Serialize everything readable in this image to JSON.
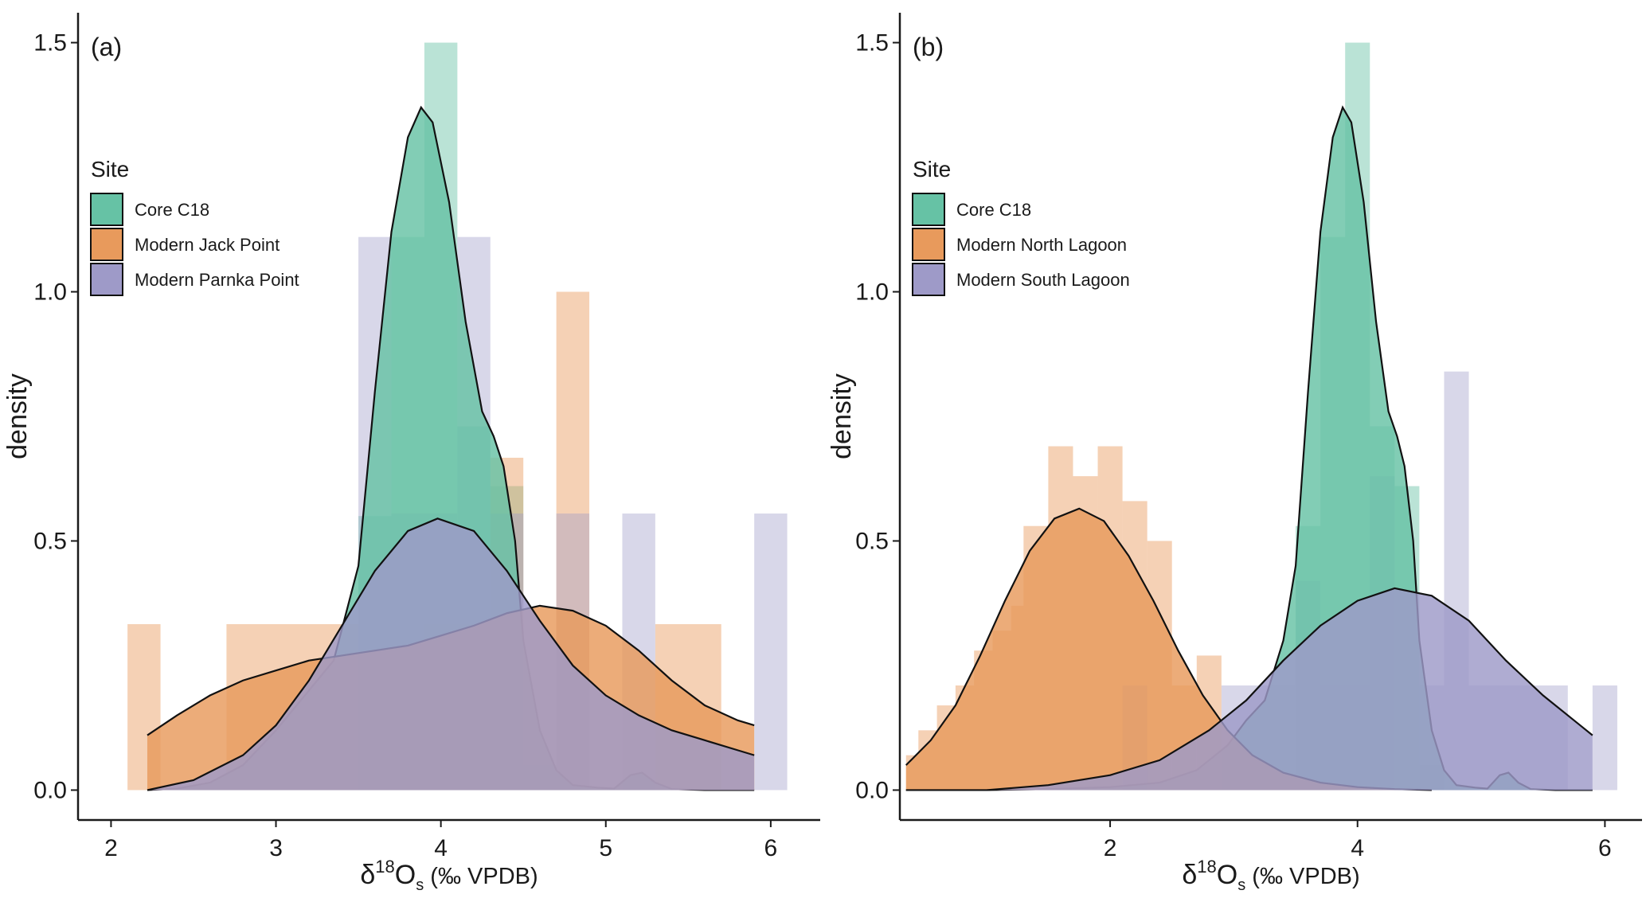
{
  "chart_data": [
    {
      "type": "histogram-density",
      "panel_label": "(a)",
      "xlabel": {
        "prefix": "δ",
        "sup": "18",
        "mid": "O",
        "sub": "s",
        "suffix": " (‰ VPDB)"
      },
      "ylabel": "density",
      "xlim": [
        1.8,
        6.3
      ],
      "ylim": [
        -0.06,
        1.56
      ],
      "xticks": [
        2,
        3,
        4,
        5,
        6
      ],
      "yticks": [
        0.0,
        0.5,
        1.0,
        1.5
      ],
      "ytick_labels": [
        "0.0",
        "0.5",
        "1.0",
        "1.5"
      ],
      "legend": {
        "title": "Site",
        "position": "top-left"
      },
      "series": [
        {
          "name": "Core C18",
          "color": "#66c2a5",
          "hist_alpha": 0.45,
          "hist_bins": [
            [
              3.5,
              3.7,
              0.55
            ],
            [
              3.7,
              3.9,
              1.11
            ],
            [
              3.9,
              4.1,
              1.5
            ],
            [
              4.1,
              4.3,
              0.73
            ],
            [
              4.3,
              4.5,
              0.61
            ],
            [
              4.5,
              4.7,
              0.05
            ]
          ],
          "density": [
            [
              2.22,
              0.0
            ],
            [
              2.4,
              0.003
            ],
            [
              2.6,
              0.015
            ],
            [
              2.8,
              0.05
            ],
            [
              3.0,
              0.12
            ],
            [
              3.2,
              0.2
            ],
            [
              3.35,
              0.26
            ],
            [
              3.5,
              0.45
            ],
            [
              3.6,
              0.8
            ],
            [
              3.7,
              1.12
            ],
            [
              3.8,
              1.31
            ],
            [
              3.88,
              1.37
            ],
            [
              3.95,
              1.34
            ],
            [
              4.05,
              1.18
            ],
            [
              4.15,
              0.94
            ],
            [
              4.25,
              0.76
            ],
            [
              4.32,
              0.71
            ],
            [
              4.38,
              0.65
            ],
            [
              4.45,
              0.5
            ],
            [
              4.5,
              0.3
            ],
            [
              4.6,
              0.12
            ],
            [
              4.7,
              0.04
            ],
            [
              4.8,
              0.01
            ],
            [
              4.95,
              0.005
            ],
            [
              5.05,
              0.003
            ],
            [
              5.15,
              0.03
            ],
            [
              5.22,
              0.035
            ],
            [
              5.3,
              0.015
            ],
            [
              5.4,
              0.002
            ],
            [
              5.6,
              0.0
            ],
            [
              5.9,
              0.0
            ]
          ]
        },
        {
          "name": "Modern Jack Point",
          "color": "#e89a5c",
          "hist_alpha": 0.45,
          "hist_bins": [
            [
              2.1,
              2.3,
              0.333
            ],
            [
              2.7,
              3.5,
              0.333
            ],
            [
              3.9,
              4.5,
              0.333
            ],
            [
              4.3,
              4.5,
              0.667
            ],
            [
              4.7,
              4.9,
              1.0
            ],
            [
              5.3,
              5.7,
              0.333
            ]
          ],
          "density": [
            [
              2.22,
              0.11
            ],
            [
              2.4,
              0.15
            ],
            [
              2.6,
              0.19
            ],
            [
              2.8,
              0.22
            ],
            [
              3.0,
              0.24
            ],
            [
              3.2,
              0.26
            ],
            [
              3.4,
              0.27
            ],
            [
              3.6,
              0.28
            ],
            [
              3.8,
              0.29
            ],
            [
              4.0,
              0.31
            ],
            [
              4.2,
              0.33
            ],
            [
              4.4,
              0.355
            ],
            [
              4.6,
              0.37
            ],
            [
              4.8,
              0.36
            ],
            [
              5.0,
              0.33
            ],
            [
              5.2,
              0.28
            ],
            [
              5.4,
              0.22
            ],
            [
              5.6,
              0.17
            ],
            [
              5.8,
              0.14
            ],
            [
              5.9,
              0.13
            ]
          ]
        },
        {
          "name": "Modern Parnka Point",
          "color": "#9e9ac8",
          "hist_alpha": 0.4,
          "hist_bins": [
            [
              3.5,
              3.7,
              1.11
            ],
            [
              3.7,
              4.1,
              0.555
            ],
            [
              4.1,
              4.3,
              1.11
            ],
            [
              4.3,
              4.5,
              0.555
            ],
            [
              4.7,
              4.9,
              0.555
            ],
            [
              5.1,
              5.3,
              0.555
            ],
            [
              5.9,
              6.1,
              0.555
            ]
          ],
          "density": [
            [
              2.22,
              0.0
            ],
            [
              2.5,
              0.02
            ],
            [
              2.8,
              0.07
            ],
            [
              3.0,
              0.13
            ],
            [
              3.2,
              0.22
            ],
            [
              3.4,
              0.33
            ],
            [
              3.6,
              0.44
            ],
            [
              3.8,
              0.52
            ],
            [
              3.98,
              0.545
            ],
            [
              4.2,
              0.52
            ],
            [
              4.4,
              0.44
            ],
            [
              4.6,
              0.34
            ],
            [
              4.8,
              0.25
            ],
            [
              5.0,
              0.19
            ],
            [
              5.2,
              0.15
            ],
            [
              5.4,
              0.12
            ],
            [
              5.6,
              0.1
            ],
            [
              5.8,
              0.08
            ],
            [
              5.9,
              0.07
            ]
          ]
        }
      ]
    },
    {
      "type": "histogram-density",
      "panel_label": "(b)",
      "xlabel": {
        "prefix": "δ",
        "sup": "18",
        "mid": "O",
        "sub": "s",
        "suffix": " (‰ VPDB)"
      },
      "ylabel": "density",
      "xlim": [
        0.3,
        6.3
      ],
      "ylim": [
        -0.06,
        1.56
      ],
      "xticks": [
        2,
        4,
        6
      ],
      "yticks": [
        0.0,
        0.5,
        1.0,
        1.5
      ],
      "ytick_labels": [
        "0.0",
        "0.5",
        "1.0",
        "1.5"
      ],
      "legend": {
        "title": "Site",
        "position": "top-left"
      },
      "series": [
        {
          "name": "Core C18",
          "color": "#66c2a5",
          "hist_alpha": 0.45,
          "hist_bins": [
            [
              3.5,
              3.7,
              0.53
            ],
            [
              3.7,
              3.9,
              1.11
            ],
            [
              3.9,
              4.1,
              1.5
            ],
            [
              4.1,
              4.3,
              0.73
            ],
            [
              4.3,
              4.5,
              0.61
            ],
            [
              4.5,
              4.7,
              0.05
            ]
          ],
          "density": [
            [
              0.35,
              0.0
            ],
            [
              1.0,
              0.0
            ],
            [
              1.5,
              0.002
            ],
            [
              2.0,
              0.006
            ],
            [
              2.4,
              0.015
            ],
            [
              2.7,
              0.04
            ],
            [
              2.95,
              0.09
            ],
            [
              3.1,
              0.14
            ],
            [
              3.25,
              0.18
            ],
            [
              3.4,
              0.3
            ],
            [
              3.5,
              0.45
            ],
            [
              3.6,
              0.8
            ],
            [
              3.7,
              1.12
            ],
            [
              3.8,
              1.31
            ],
            [
              3.88,
              1.37
            ],
            [
              3.95,
              1.34
            ],
            [
              4.05,
              1.18
            ],
            [
              4.15,
              0.94
            ],
            [
              4.25,
              0.76
            ],
            [
              4.32,
              0.71
            ],
            [
              4.38,
              0.65
            ],
            [
              4.45,
              0.5
            ],
            [
              4.5,
              0.3
            ],
            [
              4.6,
              0.12
            ],
            [
              4.7,
              0.04
            ],
            [
              4.8,
              0.01
            ],
            [
              4.95,
              0.005
            ],
            [
              5.05,
              0.003
            ],
            [
              5.15,
              0.03
            ],
            [
              5.22,
              0.035
            ],
            [
              5.3,
              0.015
            ],
            [
              5.4,
              0.002
            ],
            [
              5.6,
              0.0
            ],
            [
              5.9,
              0.0
            ]
          ]
        },
        {
          "name": "Modern North Lagoon",
          "color": "#e89a5c",
          "hist_alpha": 0.45,
          "hist_bins": [
            [
              0.35,
              0.45,
              0.07
            ],
            [
              0.45,
              0.6,
              0.12
            ],
            [
              0.6,
              0.75,
              0.17
            ],
            [
              0.75,
              0.9,
              0.21
            ],
            [
              0.9,
              1.05,
              0.28
            ],
            [
              1.05,
              1.2,
              0.32
            ],
            [
              1.2,
              1.3,
              0.37
            ],
            [
              1.3,
              1.5,
              0.53
            ],
            [
              1.5,
              1.7,
              0.69
            ],
            [
              1.7,
              1.9,
              0.63
            ],
            [
              1.9,
              2.1,
              0.69
            ],
            [
              2.1,
              2.3,
              0.58
            ],
            [
              2.3,
              2.5,
              0.5
            ],
            [
              2.5,
              2.7,
              0.21
            ],
            [
              2.7,
              2.9,
              0.27
            ]
          ],
          "density": [
            [
              0.35,
              0.05
            ],
            [
              0.55,
              0.1
            ],
            [
              0.75,
              0.17
            ],
            [
              0.95,
              0.27
            ],
            [
              1.15,
              0.38
            ],
            [
              1.35,
              0.48
            ],
            [
              1.55,
              0.545
            ],
            [
              1.75,
              0.565
            ],
            [
              1.95,
              0.54
            ],
            [
              2.15,
              0.47
            ],
            [
              2.35,
              0.38
            ],
            [
              2.55,
              0.28
            ],
            [
              2.75,
              0.19
            ],
            [
              2.95,
              0.12
            ],
            [
              3.15,
              0.07
            ],
            [
              3.4,
              0.035
            ],
            [
              3.7,
              0.015
            ],
            [
              4.0,
              0.006
            ],
            [
              4.3,
              0.002
            ],
            [
              4.6,
              0.0
            ]
          ]
        },
        {
          "name": "Modern South Lagoon",
          "color": "#9e9ac8",
          "hist_alpha": 0.4,
          "hist_bins": [
            [
              2.1,
              2.3,
              0.21
            ],
            [
              2.9,
              3.5,
              0.21
            ],
            [
              3.5,
              3.7,
              0.42
            ],
            [
              3.7,
              4.1,
              0.21
            ],
            [
              4.1,
              4.3,
              0.63
            ],
            [
              4.5,
              4.7,
              0.21
            ],
            [
              4.7,
              4.9,
              0.84
            ],
            [
              4.9,
              5.7,
              0.21
            ],
            [
              5.9,
              6.1,
              0.21
            ]
          ],
          "density": [
            [
              0.35,
              0.0
            ],
            [
              1.0,
              0.0
            ],
            [
              1.5,
              0.01
            ],
            [
              2.0,
              0.03
            ],
            [
              2.4,
              0.06
            ],
            [
              2.8,
              0.12
            ],
            [
              3.1,
              0.18
            ],
            [
              3.4,
              0.26
            ],
            [
              3.7,
              0.33
            ],
            [
              4.0,
              0.38
            ],
            [
              4.3,
              0.405
            ],
            [
              4.6,
              0.39
            ],
            [
              4.9,
              0.34
            ],
            [
              5.2,
              0.26
            ],
            [
              5.5,
              0.19
            ],
            [
              5.8,
              0.13
            ],
            [
              5.9,
              0.11
            ]
          ]
        }
      ]
    }
  ]
}
